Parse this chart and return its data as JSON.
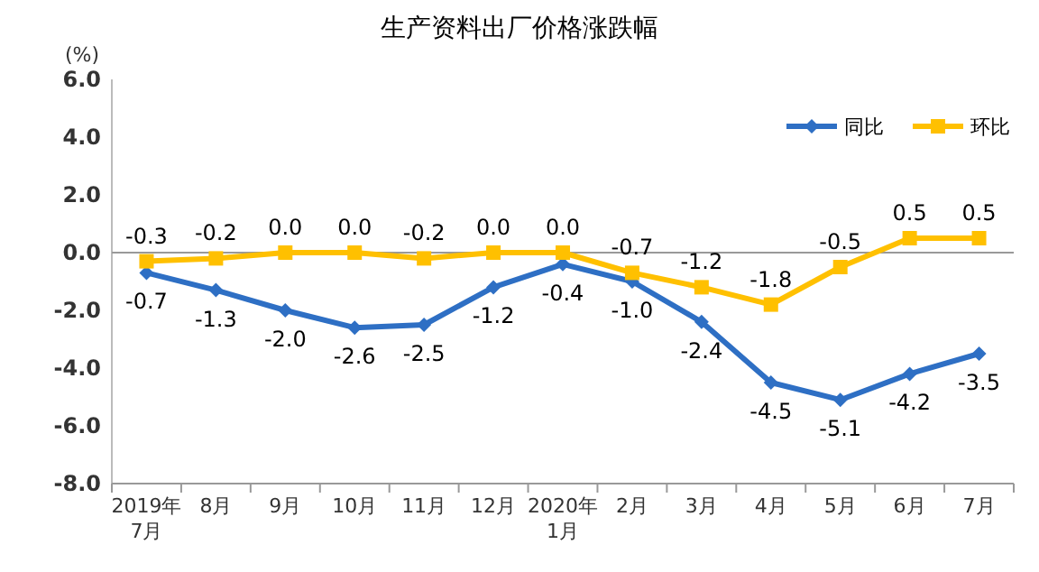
{
  "chart_data": {
    "type": "line",
    "title": "生产资料出厂价格涨跌幅",
    "ylabel": "(%)",
    "categories": [
      "2019年\n7月",
      "8月",
      "9月",
      "10月",
      "11月",
      "12月",
      "2020年\n1月",
      "2月",
      "3月",
      "4月",
      "5月",
      "6月",
      "7月"
    ],
    "series": [
      {
        "name": "同比",
        "color": "#2e6fc4",
        "marker": "diamond",
        "values": [
          -0.7,
          -1.3,
          -2.0,
          -2.6,
          -2.5,
          -1.2,
          -0.4,
          -1.0,
          -2.4,
          -4.5,
          -5.1,
          -4.2,
          -3.5
        ],
        "value_labels": [
          "-0.7",
          "-1.3",
          "-2.0",
          "-2.6",
          "-2.5",
          "-1.2",
          "-0.4",
          "-1.0",
          "-2.4",
          "-4.5",
          "-5.1",
          "-4.2",
          "-3.5"
        ]
      },
      {
        "name": "环比",
        "color": "#ffc000",
        "marker": "square",
        "values": [
          -0.3,
          -0.2,
          0.0,
          0.0,
          -0.2,
          0.0,
          0.0,
          -0.7,
          -1.2,
          -1.8,
          -0.5,
          0.5,
          0.5
        ],
        "value_labels": [
          "-0.3",
          "-0.2",
          "0.0",
          "0.0",
          "-0.2",
          "0.0",
          "0.0",
          "-0.7",
          "-1.2",
          "-1.8",
          "-0.5",
          "0.5",
          "0.5"
        ]
      }
    ],
    "ylim": [
      -8,
      6
    ],
    "yticks": [
      {
        "value": 6,
        "label": "6.0"
      },
      {
        "value": 4,
        "label": "4.0"
      },
      {
        "value": 2,
        "label": "2.0"
      },
      {
        "value": 0,
        "label": "0.0"
      },
      {
        "value": -2,
        "label": "-2.0"
      },
      {
        "value": -4,
        "label": "-4.0"
      },
      {
        "value": -6,
        "label": "-6.0"
      },
      {
        "value": -8,
        "label": "-8.0"
      }
    ],
    "legend": "top right"
  }
}
